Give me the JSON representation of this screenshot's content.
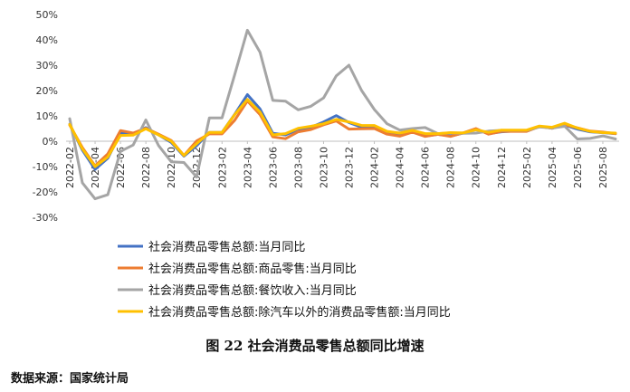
{
  "caption": "图 22  社会消费品零售总额同比增速",
  "source": "数据来源：国家统计局",
  "chart_data": {
    "type": "line",
    "title": "",
    "xlabel": "",
    "ylabel": "",
    "ylim": [
      -30,
      50
    ],
    "y_ticks": [
      -30,
      -20,
      -10,
      0,
      10,
      20,
      30,
      40,
      50
    ],
    "y_tick_format": "percent",
    "grid": false,
    "legend_position": "bottom",
    "x": [
      "2022-02",
      "2022-03",
      "2022-04",
      "2022-05",
      "2022-06",
      "2022-07",
      "2022-08",
      "2022-09",
      "2022-10",
      "2022-11",
      "2022-12",
      "2023-01",
      "2023-02",
      "2023-03",
      "2023-04",
      "2023-05",
      "2023-06",
      "2023-07",
      "2023-08",
      "2023-09",
      "2023-10",
      "2023-11",
      "2023-12",
      "2024-01",
      "2024-02",
      "2024-03",
      "2024-04",
      "2024-05",
      "2024-06",
      "2024-07",
      "2024-08",
      "2024-09",
      "2024-10",
      "2024-11",
      "2024-12",
      "2025-01",
      "2025-02",
      "2025-03",
      "2025-04",
      "2025-05",
      "2025-06",
      "2025-07",
      "2025-08",
      "2025-09"
    ],
    "x_tick_labels": [
      "2022-02",
      "2022-04",
      "2022-06",
      "2022-08",
      "2022-10",
      "2022-12",
      "2023-02",
      "2023-04",
      "2023-06",
      "2023-08",
      "2023-10",
      "2023-12",
      "2024-02",
      "2024-04",
      "2024-06",
      "2024-08",
      "2024-10",
      "2024-12",
      "2025-02",
      "2025-04",
      "2025-06",
      "2025-08"
    ],
    "series": [
      {
        "name": "社会消费品零售总额:当月同比",
        "color": "#4472C4",
        "values": [
          6.7,
          -3.5,
          -11.1,
          -6.7,
          3.1,
          2.7,
          5.4,
          2.5,
          -0.5,
          -5.9,
          -1.8,
          3.5,
          3.5,
          10.6,
          18.4,
          12.7,
          3.1,
          2.5,
          4.6,
          5.5,
          7.6,
          10.1,
          7.4,
          5.5,
          5.5,
          3.1,
          2.3,
          3.7,
          2.0,
          2.7,
          2.1,
          3.2,
          4.8,
          3.0,
          3.7,
          4.0,
          4.0,
          5.9,
          5.1,
          6.4,
          4.8,
          3.7,
          3.4,
          3.0
        ]
      },
      {
        "name": "社会消费品零售总额:商品零售:当月同比",
        "color": "#ED7D31",
        "values": [
          6.4,
          -2.5,
          -9.7,
          -5.0,
          4.2,
          3.2,
          5.1,
          2.8,
          0.3,
          -5.6,
          0.1,
          2.9,
          2.9,
          8.3,
          15.9,
          10.5,
          1.7,
          1.0,
          3.7,
          4.6,
          6.5,
          8.0,
          4.8,
          4.9,
          5.0,
          2.8,
          2.0,
          3.6,
          1.9,
          2.7,
          1.9,
          3.3,
          5.0,
          2.8,
          3.9,
          3.9,
          3.9,
          5.8,
          5.1,
          6.5,
          5.3,
          4.0,
          3.6,
          3.0
        ]
      },
      {
        "name": "社会消费品零售总额:餐饮收入:当月同比",
        "color": "#A5A5A5",
        "values": [
          8.9,
          -16.4,
          -22.7,
          -21.1,
          -4.0,
          -1.5,
          8.4,
          -1.7,
          -8.1,
          -8.4,
          -14.1,
          9.2,
          9.2,
          26.3,
          43.8,
          35.1,
          16.1,
          15.8,
          12.4,
          13.8,
          17.1,
          25.8,
          30.0,
          20.0,
          12.5,
          6.9,
          4.4,
          5.0,
          5.4,
          3.0,
          3.3,
          3.1,
          3.2,
          4.0,
          4.3,
          4.3,
          4.3,
          5.6,
          5.2,
          5.9,
          0.9,
          1.1,
          2.1,
          0.9
        ]
      },
      {
        "name": "社会消费品零售总额:除汽车以外的消费品零售额:当月同比",
        "color": "#FFC000",
        "values": [
          6.6,
          -3.0,
          -10.0,
          -6.2,
          2.3,
          2.4,
          4.9,
          2.5,
          0.0,
          -5.6,
          -1.0,
          3.5,
          3.5,
          10.5,
          16.5,
          11.5,
          2.5,
          3.0,
          5.1,
          5.9,
          6.9,
          8.6,
          7.6,
          6.2,
          6.2,
          3.9,
          3.2,
          4.3,
          3.0,
          3.0,
          3.4,
          3.3,
          4.5,
          3.5,
          4.4,
          4.4,
          4.4,
          6.0,
          5.5,
          7.1,
          5.2,
          3.9,
          3.4,
          3.2
        ]
      }
    ]
  }
}
